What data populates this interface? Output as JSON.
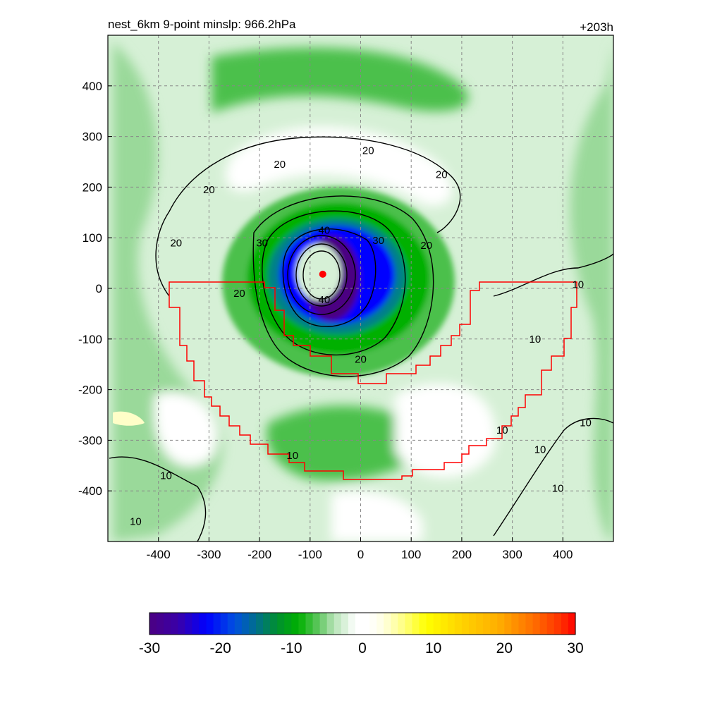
{
  "header": {
    "title": "nest_6km  9-point minslp: 966.2hPa",
    "time_label": "+203h"
  },
  "chart_data": {
    "type": "heatmap",
    "xlim": [
      -500,
      500
    ],
    "ylim": [
      -500,
      500
    ],
    "x_ticks": [
      -400,
      -300,
      -200,
      -100,
      0,
      100,
      200,
      300,
      400
    ],
    "y_ticks": [
      400,
      300,
      200,
      100,
      0,
      -100,
      -200,
      -300,
      -400
    ],
    "x_tick_labels": [
      "-400",
      "-300",
      "-200",
      "-100",
      "0",
      "100",
      "200",
      "300",
      "400"
    ],
    "y_tick_labels": [
      "400",
      "300",
      "200",
      "100",
      "0",
      "-100",
      "-200",
      "-300",
      "-400"
    ],
    "grid": true,
    "storm_center": {
      "x": -75,
      "y": 28
    },
    "contour_labels": [
      {
        "text": "20",
        "x": 15,
        "y": 272
      },
      {
        "text": "20",
        "x": -160,
        "y": 245
      },
      {
        "text": "20",
        "x": 160,
        "y": 225
      },
      {
        "text": "20",
        "x": -300,
        "y": 195
      },
      {
        "text": "20",
        "x": -365,
        "y": 90
      },
      {
        "text": "30",
        "x": -195,
        "y": 90
      },
      {
        "text": "40",
        "x": -72,
        "y": 115
      },
      {
        "text": "30",
        "x": 35,
        "y": 95
      },
      {
        "text": "20",
        "x": 130,
        "y": 85
      },
      {
        "text": "40",
        "x": -72,
        "y": -22
      },
      {
        "text": "20",
        "x": -240,
        "y": -10
      },
      {
        "text": "20",
        "x": 0,
        "y": -140
      },
      {
        "text": "10",
        "x": 430,
        "y": 8
      },
      {
        "text": "10",
        "x": 345,
        "y": -100
      },
      {
        "text": "10",
        "x": -135,
        "y": -330
      },
      {
        "text": "10",
        "x": 280,
        "y": -280
      },
      {
        "text": "10",
        "x": 355,
        "y": -318
      },
      {
        "text": "10",
        "x": 445,
        "y": -265
      },
      {
        "text": "10",
        "x": 390,
        "y": -395
      },
      {
        "text": "10",
        "x": -385,
        "y": -370
      },
      {
        "text": "10",
        "x": -445,
        "y": -460
      }
    ],
    "colorbar": {
      "min": -30,
      "max": 30,
      "tick_labels": [
        "-30",
        "-20",
        "-10",
        "0",
        "10",
        "20",
        "30"
      ],
      "tick_values": [
        -30,
        -20,
        -10,
        0,
        10,
        20,
        30
      ]
    }
  },
  "colors": {
    "purple": "#4b0082",
    "blue": "#0000ff",
    "teal": "#00808a",
    "green": "#00b000",
    "mid_green": "#4cc04c",
    "light_green": "#9ad99a",
    "pale_green": "#d6f0d6",
    "yellow": "#ffff00",
    "red": "#ff0000",
    "region_line": "#ff0000"
  }
}
